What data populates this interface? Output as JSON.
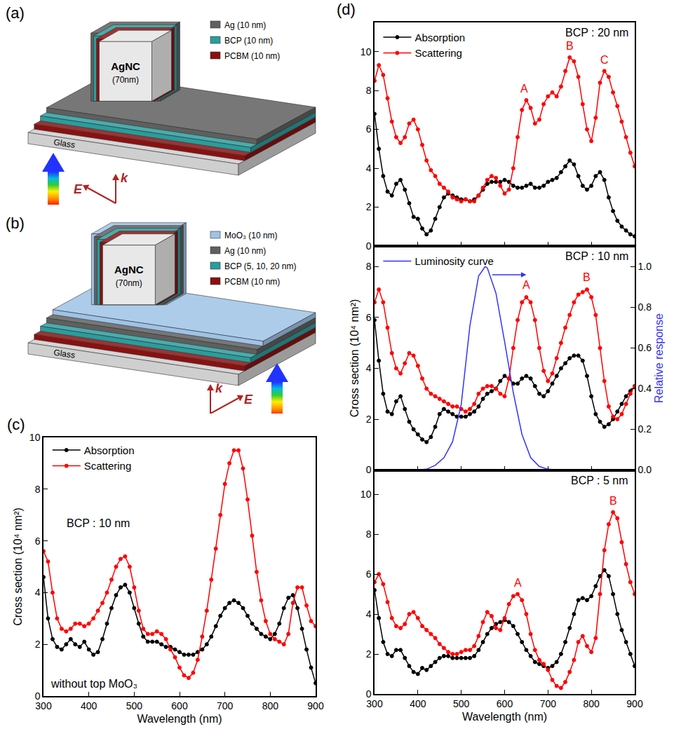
{
  "chart_data": [
    {
      "type": "line",
      "panel": "(c)",
      "x_label": "Wavelength (nm)",
      "y_label": "Cross section (10⁴ nm²)",
      "xlim": [
        300,
        900
      ],
      "xticks": [
        300,
        400,
        500,
        600,
        700,
        800,
        900
      ],
      "ylim": [
        0,
        10
      ],
      "yticks": [
        0,
        2,
        4,
        6,
        8,
        10
      ],
      "grid": false,
      "legend": "upper left",
      "annotations": [
        {
          "text": "BCP : 10 nm"
        },
        {
          "text": "without top MoO₃"
        }
      ],
      "x": [
        300,
        310,
        320,
        330,
        340,
        350,
        360,
        370,
        380,
        390,
        400,
        410,
        420,
        430,
        440,
        450,
        460,
        470,
        480,
        490,
        500,
        510,
        520,
        530,
        540,
        550,
        560,
        570,
        580,
        590,
        600,
        610,
        620,
        630,
        640,
        650,
        660,
        670,
        680,
        690,
        700,
        710,
        720,
        730,
        740,
        750,
        760,
        770,
        780,
        790,
        800,
        810,
        820,
        830,
        840,
        850,
        860,
        870,
        880,
        890,
        900
      ],
      "series": [
        {
          "name": "Absorption",
          "color": "#000000",
          "marker": "circle",
          "line_style": "solid",
          "values": [
            4.6,
            3.0,
            2.2,
            1.9,
            1.8,
            2.0,
            2.2,
            2.0,
            1.9,
            2.1,
            1.8,
            1.6,
            1.7,
            2.2,
            2.8,
            3.4,
            3.9,
            4.2,
            4.3,
            4.0,
            3.4,
            2.8,
            2.3,
            2.1,
            2.1,
            2.1,
            2.0,
            1.9,
            1.9,
            1.8,
            1.7,
            1.6,
            1.6,
            1.6,
            1.7,
            1.8,
            2.0,
            2.3,
            2.7,
            3.1,
            3.4,
            3.6,
            3.7,
            3.6,
            3.4,
            3.1,
            2.8,
            2.6,
            2.4,
            2.3,
            2.2,
            2.4,
            2.8,
            3.4,
            3.8,
            3.9,
            3.4,
            2.6,
            1.8,
            1.1,
            0.5
          ]
        },
        {
          "name": "Scattering",
          "color": "#ff0000",
          "marker": "circle",
          "line_style": "solid",
          "values": [
            5.6,
            5.2,
            4.0,
            3.0,
            2.6,
            2.5,
            2.6,
            2.8,
            2.8,
            2.7,
            2.8,
            3.0,
            3.3,
            3.6,
            4.0,
            4.5,
            5.0,
            5.3,
            5.4,
            5.0,
            4.2,
            3.3,
            2.6,
            2.4,
            2.4,
            2.5,
            2.4,
            2.2,
            1.8,
            1.5,
            1.1,
            0.8,
            0.7,
            0.9,
            1.4,
            2.3,
            3.3,
            4.5,
            5.7,
            7.0,
            8.2,
            9.0,
            9.5,
            9.5,
            8.8,
            7.6,
            6.2,
            4.8,
            3.7,
            2.9,
            2.4,
            2.2,
            2.1,
            2.0,
            2.4,
            3.6,
            4.2,
            4.2,
            3.5,
            2.9,
            2.7
          ]
        }
      ]
    },
    {
      "type": "line",
      "panel": "(d)",
      "tick_labels": "y",
      "xlim": [
        300,
        900
      ],
      "xticks": [
        300,
        400,
        500,
        600,
        700,
        800,
        900
      ],
      "ylim": [
        0,
        11.5
      ],
      "yticks": [
        0,
        2,
        4,
        6,
        8,
        10
      ],
      "grid": false,
      "legend": "upper left",
      "annotations": [
        {
          "text": "BCP : 20 nm"
        }
      ],
      "peak_labels": [
        {
          "text": "A",
          "x": 645,
          "y": 7.7,
          "color": "#ff0000"
        },
        {
          "text": "B",
          "x": 750,
          "y": 9.9,
          "color": "#ff0000"
        },
        {
          "text": "C",
          "x": 830,
          "y": 9.2,
          "color": "#ff0000"
        }
      ],
      "x": [
        300,
        310,
        320,
        330,
        340,
        350,
        360,
        370,
        380,
        390,
        400,
        410,
        420,
        430,
        440,
        450,
        460,
        470,
        480,
        490,
        500,
        510,
        520,
        530,
        540,
        550,
        560,
        570,
        580,
        590,
        600,
        610,
        620,
        630,
        640,
        650,
        660,
        670,
        680,
        690,
        700,
        710,
        720,
        730,
        740,
        750,
        760,
        770,
        780,
        790,
        800,
        810,
        820,
        830,
        840,
        850,
        860,
        870,
        880,
        890,
        900
      ],
      "series": [
        {
          "name": "Absorption",
          "color": "#000000",
          "marker": "circle",
          "line_style": "solid",
          "values": [
            6.8,
            5.0,
            3.6,
            2.8,
            2.6,
            3.2,
            3.4,
            2.9,
            2.2,
            1.5,
            1.4,
            0.9,
            0.6,
            0.8,
            1.4,
            2.0,
            2.5,
            2.7,
            2.6,
            2.5,
            2.4,
            2.4,
            2.3,
            2.4,
            2.6,
            2.9,
            3.2,
            3.3,
            3.3,
            3.3,
            3.4,
            3.3,
            3.1,
            3.0,
            3.0,
            3.1,
            3.2,
            3.0,
            3.0,
            3.1,
            3.3,
            3.4,
            3.5,
            3.8,
            4.1,
            4.4,
            4.2,
            3.6,
            3.1,
            2.9,
            3.1,
            3.6,
            3.8,
            3.4,
            2.5,
            1.8,
            1.3,
            1.0,
            0.8,
            0.6,
            0.5
          ]
        },
        {
          "name": "Scattering",
          "color": "#ff0000",
          "marker": "circle",
          "line_style": "solid",
          "values": [
            8.5,
            9.3,
            8.8,
            7.6,
            6.4,
            5.6,
            5.3,
            5.6,
            6.3,
            6.5,
            6.0,
            5.2,
            4.4,
            3.9,
            3.6,
            3.2,
            3.0,
            2.8,
            2.5,
            2.4,
            2.3,
            2.4,
            2.3,
            2.3,
            2.6,
            3.0,
            3.4,
            3.6,
            3.5,
            3.1,
            2.7,
            2.9,
            4.0,
            5.6,
            7.0,
            7.5,
            7.1,
            6.3,
            6.5,
            7.3,
            7.7,
            7.9,
            7.7,
            8.2,
            9.0,
            9.7,
            9.5,
            8.7,
            7.3,
            6.0,
            5.4,
            6.6,
            8.4,
            9.0,
            8.7,
            7.9,
            7.2,
            6.4,
            5.6,
            4.8,
            4.1
          ]
        }
      ]
    },
    {
      "type": "line",
      "tick_labels": "y",
      "y_label": "Cross section (10⁴ nm²)",
      "y2_label": "Relative response",
      "xlim": [
        300,
        900
      ],
      "xticks": [
        300,
        400,
        500,
        600,
        700,
        800,
        900
      ],
      "ylim": [
        0,
        8.8
      ],
      "yticks": [
        0,
        2,
        4,
        6,
        8
      ],
      "y2lim": [
        0,
        1.1
      ],
      "y2ticks": [
        {
          "value": 0,
          "label": "0.0"
        },
        {
          "value": 0.2,
          "label": "0.2"
        },
        {
          "value": 0.4,
          "label": "0.4"
        },
        {
          "value": 0.6,
          "label": "0.6"
        },
        {
          "value": 0.8,
          "label": "0.8"
        },
        {
          "value": 1,
          "label": "1.0"
        }
      ],
      "grid": false,
      "legend": "upper left",
      "annotations": [
        {
          "text": "BCP : 10 nm"
        }
      ],
      "peak_labels": [
        {
          "text": "A",
          "x": 650,
          "y": 7.0,
          "color": "#ff0000"
        },
        {
          "text": "B",
          "x": 790,
          "y": 7.3,
          "color": "#ff0000"
        }
      ],
      "x": [
        300,
        310,
        320,
        330,
        340,
        350,
        360,
        370,
        380,
        390,
        400,
        410,
        420,
        430,
        440,
        450,
        460,
        470,
        480,
        490,
        500,
        510,
        520,
        530,
        540,
        550,
        560,
        570,
        580,
        590,
        600,
        610,
        620,
        630,
        640,
        650,
        660,
        670,
        680,
        690,
        700,
        710,
        720,
        730,
        740,
        750,
        760,
        770,
        780,
        790,
        800,
        810,
        820,
        830,
        840,
        850,
        860,
        870,
        880,
        890,
        900
      ],
      "series": [
        {
          "color": "#000000",
          "marker": "circle",
          "line_style": "solid",
          "values": [
            5.9,
            4.3,
            3.0,
            2.3,
            2.2,
            2.7,
            2.9,
            2.4,
            1.9,
            1.6,
            1.4,
            1.2,
            1.1,
            1.3,
            1.7,
            2.2,
            2.4,
            2.3,
            2.2,
            2.1,
            2.1,
            2.1,
            2.2,
            2.3,
            2.5,
            2.8,
            3.0,
            3.1,
            3.2,
            3.5,
            3.7,
            3.6,
            3.4,
            3.4,
            3.6,
            3.7,
            3.6,
            3.3,
            3.0,
            2.9,
            3.1,
            3.4,
            3.7,
            4.0,
            4.2,
            4.4,
            4.5,
            4.5,
            4.3,
            3.7,
            2.9,
            2.2,
            1.9,
            1.7,
            1.8,
            2.0,
            2.3,
            2.6,
            2.9,
            3.1,
            3.3
          ]
        },
        {
          "color": "#ff0000",
          "marker": "circle",
          "line_style": "solid",
          "values": [
            6.6,
            7.1,
            6.6,
            5.6,
            4.6,
            4.0,
            3.8,
            4.2,
            4.6,
            4.5,
            4.1,
            3.6,
            3.2,
            3.0,
            2.9,
            2.8,
            2.7,
            2.6,
            2.5,
            2.5,
            2.4,
            2.3,
            2.4,
            2.6,
            3.0,
            3.2,
            3.3,
            3.3,
            3.2,
            3.0,
            2.9,
            3.6,
            4.8,
            5.9,
            6.6,
            6.8,
            6.6,
            5.9,
            4.8,
            3.9,
            3.5,
            3.8,
            4.4,
            5.0,
            5.6,
            6.1,
            6.6,
            6.9,
            7.0,
            7.1,
            6.8,
            6.1,
            4.8,
            3.5,
            2.5,
            2.1,
            2.0,
            2.2,
            2.6,
            3.0,
            3.3
          ]
        },
        {
          "name": "Luminosity curve",
          "color": "#3333ff",
          "line_style": "solid",
          "axis": "y2",
          "x": [
            380,
            400,
            420,
            440,
            460,
            480,
            500,
            520,
            540,
            555,
            560,
            580,
            600,
            620,
            640,
            660,
            680,
            700,
            720,
            740,
            760,
            780
          ],
          "values": [
            0,
            0.0004,
            0.004,
            0.023,
            0.06,
            0.139,
            0.323,
            0.71,
            0.954,
            1.0,
            0.995,
            0.87,
            0.631,
            0.381,
            0.175,
            0.061,
            0.017,
            0.004,
            0.001,
            0.0003,
            0.0001,
            0
          ]
        }
      ]
    },
    {
      "type": "line",
      "x_label": "Wavelength (nm)",
      "xlim": [
        300,
        900
      ],
      "xticks": [
        300,
        400,
        500,
        600,
        700,
        800,
        900
      ],
      "ylim": [
        0,
        11.2
      ],
      "yticks": [
        0,
        2,
        4,
        6,
        8,
        10
      ],
      "grid": false,
      "annotations": [
        {
          "text": "BCP : 5 nm"
        }
      ],
      "peak_labels": [
        {
          "text": "A",
          "x": 630,
          "y": 5.2,
          "color": "#ff0000"
        },
        {
          "text": "B",
          "x": 850,
          "y": 9.3,
          "color": "#ff0000"
        }
      ],
      "x": [
        300,
        310,
        320,
        330,
        340,
        350,
        360,
        370,
        380,
        390,
        400,
        410,
        420,
        430,
        440,
        450,
        460,
        470,
        480,
        490,
        500,
        510,
        520,
        530,
        540,
        550,
        560,
        570,
        580,
        590,
        600,
        610,
        620,
        630,
        640,
        650,
        660,
        670,
        680,
        690,
        700,
        710,
        720,
        730,
        740,
        750,
        760,
        770,
        780,
        790,
        800,
        810,
        820,
        830,
        840,
        850,
        860,
        870,
        880,
        890,
        900
      ],
      "series": [
        {
          "color": "#000000",
          "marker": "circle",
          "line_style": "solid",
          "values": [
            5.2,
            3.8,
            2.6,
            2.0,
            1.9,
            2.2,
            2.2,
            1.8,
            1.4,
            1.1,
            1.0,
            1.3,
            1.2,
            1.4,
            1.6,
            1.8,
            1.9,
            1.9,
            1.8,
            1.8,
            1.8,
            1.8,
            1.8,
            1.9,
            2.2,
            2.6,
            3.0,
            3.3,
            3.5,
            3.6,
            3.7,
            3.6,
            3.4,
            3.0,
            2.6,
            2.2,
            1.9,
            1.6,
            1.5,
            1.4,
            1.3,
            1.4,
            1.6,
            2.0,
            2.6,
            3.3,
            4.0,
            4.7,
            4.8,
            4.7,
            4.9,
            5.4,
            5.9,
            6.2,
            5.9,
            5.0,
            4.0,
            3.2,
            2.6,
            2.0,
            1.4
          ]
        },
        {
          "color": "#ff0000",
          "marker": "circle",
          "line_style": "solid",
          "values": [
            5.6,
            6.0,
            5.5,
            4.6,
            3.8,
            3.4,
            3.3,
            3.5,
            4.0,
            4.1,
            3.8,
            3.4,
            3.2,
            3.0,
            2.8,
            2.5,
            2.3,
            2.1,
            2.0,
            2.0,
            2.1,
            2.2,
            2.2,
            2.4,
            2.9,
            3.6,
            4.1,
            3.9,
            3.3,
            3.2,
            3.8,
            4.5,
            4.9,
            5.0,
            4.7,
            4.0,
            3.0,
            2.2,
            1.7,
            1.5,
            1.2,
            0.7,
            0.4,
            0.3,
            0.6,
            1.1,
            1.7,
            2.6,
            2.9,
            2.4,
            2.1,
            2.8,
            5.0,
            7.2,
            8.5,
            9.1,
            8.8,
            7.6,
            6.5,
            5.6,
            5.0
          ]
        }
      ]
    }
  ],
  "diagrams": [
    {
      "panel": "(a)",
      "cube": [
        "AgNC",
        "(70nm)"
      ],
      "layers": [
        {
          "label": "Ag (10 nm)",
          "color": "#5f5f5f"
        },
        {
          "label": "BCP (10 nm)",
          "color": "#2a9d9d"
        },
        {
          "label": "PCBM (10 nm)",
          "color": "#8b1010"
        },
        {
          "label": "Glass",
          "color": "#cfcfcf"
        }
      ],
      "k": "k",
      "E": "E"
    },
    {
      "panel": "(b)",
      "cube": [
        "AgNC",
        "(70nm)"
      ],
      "layers": [
        {
          "label": "MoO₃ (10 nm)",
          "color": "#9ec3e6"
        },
        {
          "label": "Ag (10 nm)",
          "color": "#5f5f5f"
        },
        {
          "label": "BCP (5, 10, 20 nm)",
          "color": "#2a9d9d"
        },
        {
          "label": "PCBM (10 nm)",
          "color": "#8b1010"
        },
        {
          "label": "Glass",
          "color": "#cfcfcf"
        }
      ],
      "k": "k",
      "E": "E"
    }
  ]
}
